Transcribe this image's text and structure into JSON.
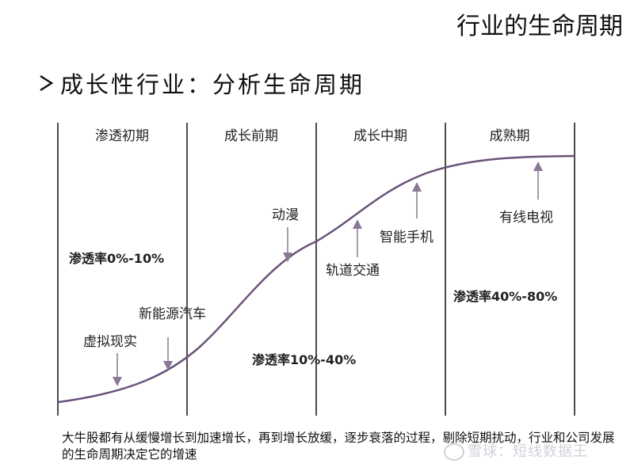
{
  "title": "行业的生命周期",
  "heading": "成长性行业：分析生命周期",
  "phases": [
    {
      "label": "渗透初期"
    },
    {
      "label": "成长前期"
    },
    {
      "label": "成长中期"
    },
    {
      "label": "成熟期"
    }
  ],
  "annotations": [
    {
      "label": "虚拟现实"
    },
    {
      "label": "新能源汽车"
    },
    {
      "label": "动漫"
    },
    {
      "label": "轨道交通"
    },
    {
      "label": "智能手机"
    },
    {
      "label": "有线电视"
    }
  ],
  "rates": [
    {
      "label": "渗透率0%-10%"
    },
    {
      "label": "渗透率10%-40%"
    },
    {
      "label": "渗透率40%-80%"
    }
  ],
  "footer": "大牛股都有从缓慢增长到加速增长，再到增长放缓，逐步衰落的过程，剔除短期扰动，行业和公司发展的生命周期决定它的增速",
  "watermark": "雪球：短线数据王",
  "colors": {
    "curve": "#6a5378",
    "arrow": "#8a7896",
    "divider": "#111111"
  }
}
